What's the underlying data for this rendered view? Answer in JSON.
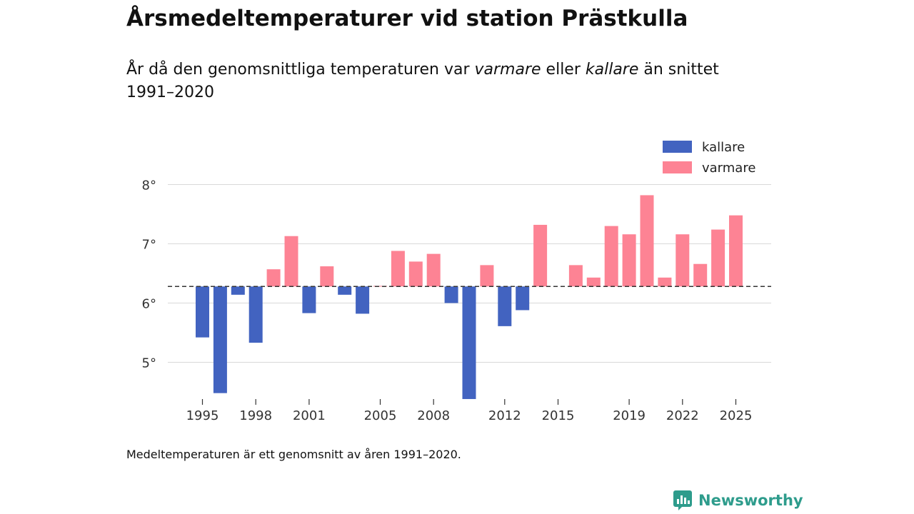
{
  "header": {
    "title": "Årsmedeltemperaturer vid station Prästkulla",
    "subtitle_pre": "År då den genomsnittliga temperaturen var ",
    "subtitle_warm": "varmare",
    "subtitle_mid": " eller ",
    "subtitle_cold": "kallare",
    "subtitle_post": " än snittet 1991–2020"
  },
  "footer": {
    "note": "Medeltemperaturen är ett genomsnitt av åren 1991–2020.",
    "brand": "Newsworthy"
  },
  "colors": {
    "cold": "#4263c0",
    "warm": "#fd8394",
    "grid": "#d9d9d9",
    "baseline": "#333333",
    "brand": "#2e9c8c"
  },
  "chart_data": {
    "type": "bar",
    "title": "Årsmedeltemperaturer vid station Prästkulla",
    "baseline": 6.28,
    "ylim": [
      4.35,
      8.0
    ],
    "yticks": [
      5,
      6,
      7,
      8
    ],
    "ytick_labels": [
      "5°",
      "6°",
      "7°",
      "8°"
    ],
    "xticks": [
      1995,
      1998,
      2001,
      2005,
      2008,
      2012,
      2015,
      2019,
      2022,
      2025
    ],
    "legend": [
      {
        "key": "cold",
        "label": "kallare"
      },
      {
        "key": "warm",
        "label": "varmare"
      }
    ],
    "years": [
      1995,
      1996,
      1997,
      1998,
      1999,
      2000,
      2001,
      2002,
      2003,
      2004,
      2005,
      2006,
      2007,
      2008,
      2009,
      2010,
      2011,
      2012,
      2013,
      2014,
      2015,
      2016,
      2017,
      2018,
      2019,
      2020,
      2021,
      2022,
      2023,
      2024,
      2025
    ],
    "values": [
      5.42,
      4.48,
      6.14,
      5.33,
      6.57,
      7.13,
      5.83,
      6.62,
      6.14,
      5.82,
      6.29,
      6.88,
      6.7,
      6.83,
      6.0,
      4.38,
      6.64,
      5.61,
      5.88,
      7.32,
      null,
      6.64,
      6.43,
      7.3,
      7.16,
      7.82,
      6.43,
      7.16,
      6.66,
      7.24,
      7.48
    ]
  }
}
